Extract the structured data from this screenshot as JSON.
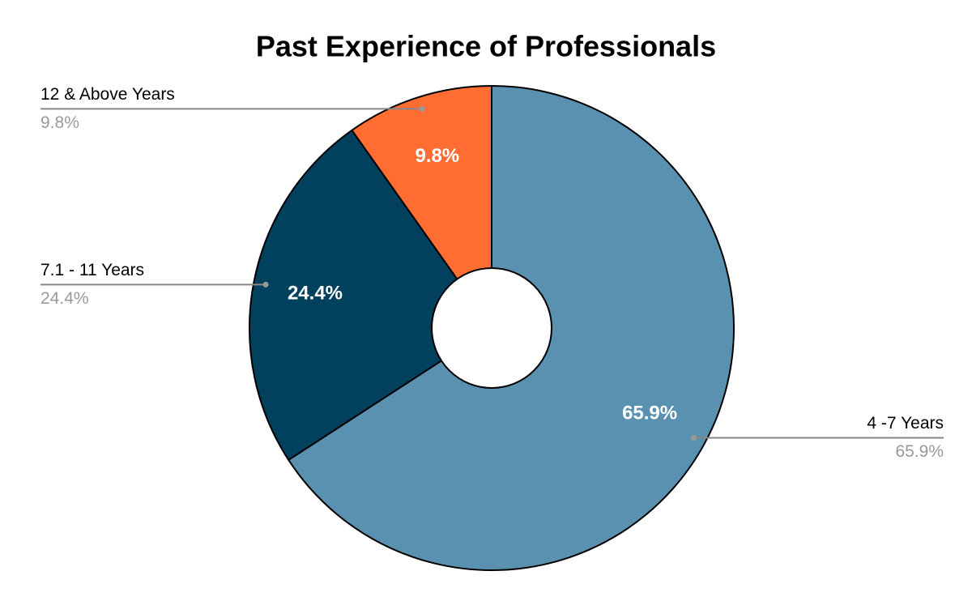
{
  "chart_data": {
    "type": "pie",
    "title": "Past Experience of Professionals",
    "categories": [
      "4 -7 Years",
      "7.1 - 11 Years",
      "12 & Above Years"
    ],
    "values": [
      65.9,
      24.4,
      9.8
    ],
    "value_labels": [
      "65.9%",
      "24.4%",
      "9.8%"
    ],
    "colors": [
      "#5b91b0",
      "#02415e",
      "#ff6d33"
    ]
  }
}
